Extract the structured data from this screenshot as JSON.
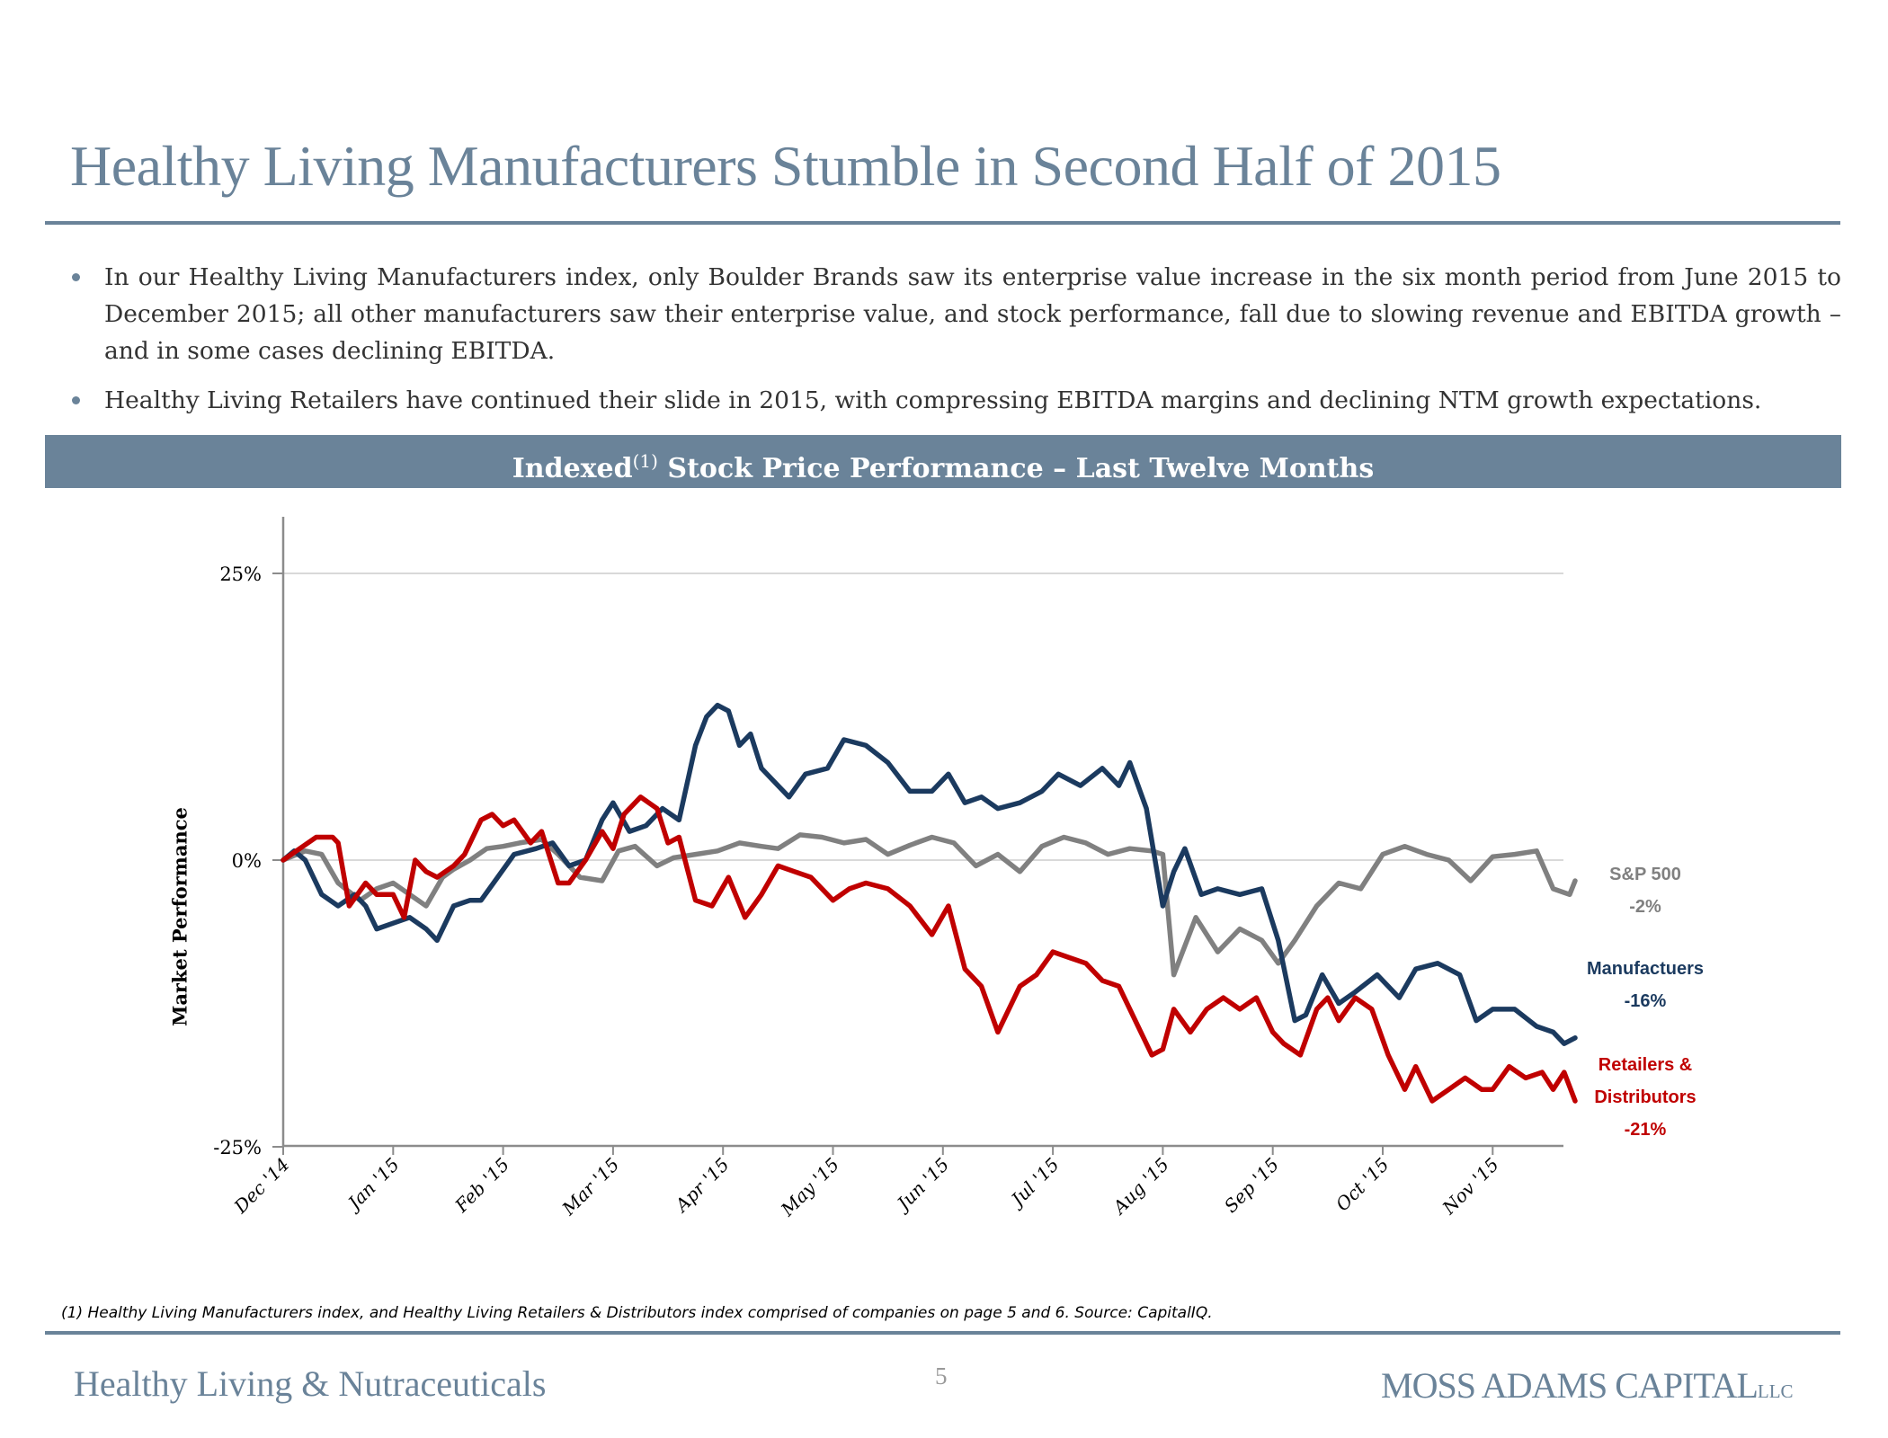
{
  "header": {
    "title": "Healthy Living Manufacturers Stumble in Second Half of 2015"
  },
  "bullets": [
    "In our Healthy Living Manufacturers index, only Boulder Brands saw its enterprise value increase in the six month period from June 2015 to December 2015; all other manufacturers saw their enterprise value, and stock performance, fall due to slowing revenue and EBITDA growth – and in some cases declining EBITDA.",
    "Healthy Living Retailers have continued their slide in 2015, with compressing EBITDA margins and declining NTM growth expectations."
  ],
  "banner": {
    "prefix": "Indexed",
    "superscript": "(1)",
    "suffix": " Stock Price Performance – Last Twelve Months"
  },
  "colors": {
    "accent": "#6a8399",
    "sp500": "#808080",
    "manufacturers": "#1b3a5f",
    "retailers": "#c00000"
  },
  "chart_data": {
    "type": "line",
    "title": "Indexed Stock Price Performance – Last Twelve Months",
    "xlabel": "",
    "ylabel": "Market Performance",
    "ylim": [
      -25,
      30
    ],
    "yticks": [
      25,
      0,
      -25
    ],
    "ytick_labels": [
      "25%",
      "0%",
      "-25%"
    ],
    "x_unit": "months since Dec '14",
    "xlim": [
      0,
      11.75
    ],
    "x_ticks": [
      0,
      1,
      2,
      3,
      4,
      5,
      6,
      7,
      8,
      9,
      10,
      11
    ],
    "x_tick_labels": [
      "Dec '14",
      "Jan '15",
      "Feb '15",
      "Mar '15",
      "Apr '15",
      "May '15",
      "Jun '15",
      "Jul '15",
      "Aug '15",
      "Sep '15",
      "Oct '15",
      "Nov '15"
    ],
    "grid": "horizontal",
    "legend_placement": "right",
    "series": [
      {
        "name": "S&P 500",
        "end_label": "-2%",
        "x": [
          0,
          0.2,
          0.35,
          0.5,
          0.7,
          0.85,
          1.0,
          1.15,
          1.3,
          1.45,
          1.55,
          1.7,
          1.85,
          2.0,
          2.15,
          2.35,
          2.5,
          2.7,
          2.9,
          3.05,
          3.2,
          3.4,
          3.55,
          3.75,
          3.95,
          4.15,
          4.35,
          4.5,
          4.7,
          4.9,
          5.1,
          5.3,
          5.5,
          5.7,
          5.9,
          6.1,
          6.3,
          6.5,
          6.7,
          6.9,
          7.1,
          7.3,
          7.5,
          7.7,
          7.9,
          8.0,
          8.1,
          8.3,
          8.5,
          8.7,
          8.9,
          9.05,
          9.2,
          9.4,
          9.6,
          9.8,
          10.0,
          10.2,
          10.4,
          10.6,
          10.8,
          11.0,
          11.2,
          11.4,
          11.55,
          11.7,
          11.75
        ],
        "values": [
          0,
          0.8,
          0.5,
          -2,
          -3.5,
          -2.5,
          -2,
          -3,
          -4,
          -1.5,
          -0.8,
          0,
          1,
          1.2,
          1.5,
          1.8,
          0.5,
          -1.5,
          -1.8,
          0.8,
          1.2,
          -0.5,
          0.2,
          0.5,
          0.8,
          1.5,
          1.2,
          1,
          2.2,
          2,
          1.5,
          1.8,
          0.5,
          1.3,
          2,
          1.5,
          -0.5,
          0.5,
          -1,
          1.2,
          2,
          1.5,
          0.5,
          1,
          0.8,
          0.5,
          -10,
          -5,
          -8,
          -6,
          -7,
          -9,
          -7,
          -4,
          -2,
          -2.5,
          0.5,
          1.2,
          0.5,
          0,
          -1.8,
          0.3,
          0.5,
          0.8,
          -2.5,
          -3,
          -1.8
        ]
      },
      {
        "name": "Manufactuers",
        "end_label": "-16%",
        "x": [
          0,
          0.1,
          0.2,
          0.35,
          0.5,
          0.65,
          0.75,
          0.85,
          1.0,
          1.15,
          1.3,
          1.4,
          1.55,
          1.7,
          1.8,
          1.95,
          2.1,
          2.3,
          2.45,
          2.6,
          2.75,
          2.9,
          3.0,
          3.15,
          3.3,
          3.45,
          3.6,
          3.75,
          3.85,
          3.95,
          4.05,
          4.15,
          4.25,
          4.35,
          4.5,
          4.6,
          4.75,
          4.95,
          5.1,
          5.3,
          5.5,
          5.7,
          5.9,
          6.05,
          6.2,
          6.35,
          6.5,
          6.7,
          6.9,
          7.05,
          7.25,
          7.45,
          7.6,
          7.7,
          7.85,
          8.0,
          8.1,
          8.2,
          8.35,
          8.5,
          8.7,
          8.9,
          9.05,
          9.2,
          9.3,
          9.45,
          9.6,
          9.75,
          9.95,
          10.15,
          10.3,
          10.5,
          10.7,
          10.85,
          11.0,
          11.2,
          11.4,
          11.55,
          11.65,
          11.75
        ],
        "values": [
          0,
          0.8,
          0,
          -3,
          -4,
          -3,
          -4,
          -6,
          -5.5,
          -5,
          -6,
          -7,
          -4,
          -3.5,
          -3.5,
          -1.5,
          0.5,
          1,
          1.5,
          -0.5,
          0,
          3.5,
          5,
          2.5,
          3,
          4.5,
          3.5,
          10,
          12.5,
          13.5,
          13,
          10,
          11,
          8,
          6.5,
          5.5,
          7.5,
          8,
          10.5,
          10,
          8.5,
          6,
          6,
          7.5,
          5,
          5.5,
          4.5,
          5,
          6,
          7.5,
          6.5,
          8,
          6.5,
          8.5,
          4.5,
          -4,
          -1,
          1,
          -3,
          -2.5,
          -3,
          -2.5,
          -7,
          -14,
          -13.5,
          -10,
          -12.5,
          -11.5,
          -10,
          -12,
          -9.5,
          -9,
          -10,
          -14,
          -13,
          -13,
          -14.5,
          -15,
          -16,
          -15.5
        ]
      },
      {
        "name": "Retailers & Distributors",
        "end_label": "-21%",
        "x": [
          0,
          0.15,
          0.3,
          0.45,
          0.5,
          0.6,
          0.75,
          0.85,
          1.0,
          1.1,
          1.2,
          1.3,
          1.4,
          1.55,
          1.65,
          1.8,
          1.9,
          2.0,
          2.1,
          2.25,
          2.35,
          2.5,
          2.6,
          2.75,
          2.9,
          3.0,
          3.1,
          3.25,
          3.4,
          3.5,
          3.6,
          3.75,
          3.9,
          4.05,
          4.2,
          4.35,
          4.5,
          4.65,
          4.8,
          5.0,
          5.15,
          5.3,
          5.5,
          5.7,
          5.9,
          6.05,
          6.2,
          6.35,
          6.5,
          6.7,
          6.85,
          7.0,
          7.15,
          7.3,
          7.45,
          7.6,
          7.75,
          7.9,
          8.0,
          8.1,
          8.25,
          8.4,
          8.55,
          8.7,
          8.85,
          9.0,
          9.1,
          9.25,
          9.4,
          9.5,
          9.6,
          9.75,
          9.9,
          10.05,
          10.2,
          10.3,
          10.45,
          10.6,
          10.75,
          10.9,
          11.0,
          11.15,
          11.3,
          11.45,
          11.55,
          11.65,
          11.75
        ],
        "values": [
          0,
          1,
          2,
          2,
          1.5,
          -4,
          -2,
          -3,
          -3,
          -5,
          0,
          -1,
          -1.5,
          -0.5,
          0.5,
          3.5,
          4,
          3,
          3.5,
          1.5,
          2.5,
          -2,
          -2,
          0,
          2.5,
          1,
          4,
          5.5,
          4.5,
          1.5,
          2,
          -3.5,
          -4,
          -1.5,
          -5,
          -3,
          -0.5,
          -1,
          -1.5,
          -3.5,
          -2.5,
          -2,
          -2.5,
          -4,
          -6.5,
          -4,
          -9.5,
          -11,
          -15,
          -11,
          -10,
          -8,
          -8.5,
          -9,
          -10.5,
          -11,
          -14,
          -17,
          -16.5,
          -13,
          -15,
          -13,
          -12,
          -13,
          -12,
          -15,
          -16,
          -17,
          -13,
          -12,
          -14,
          -12,
          -13,
          -17,
          -20,
          -18,
          -21,
          -20,
          -19,
          -20,
          -20,
          -18,
          -19,
          -18.5,
          -20,
          -18.5,
          -21
        ]
      }
    ]
  },
  "legend": [
    {
      "line1": "S&P 500",
      "line2": "-2%"
    },
    {
      "line1": "Manufactuers",
      "line2": "-16%"
    },
    {
      "line1": "Retailers &",
      "line2": "Distributors",
      "line3": "-21%"
    }
  ],
  "footnote": "(1) Healthy Living Manufacturers  index, and Healthy Living Retailers & Distributors index comprised of companies on page 5 and 6. Source: CapitalIQ.",
  "footer": {
    "left": "Healthy Living & Nutraceuticals",
    "page": "5",
    "brand": "MOSS ADAMS CAPITAL",
    "brand_suffix": "LLC"
  }
}
